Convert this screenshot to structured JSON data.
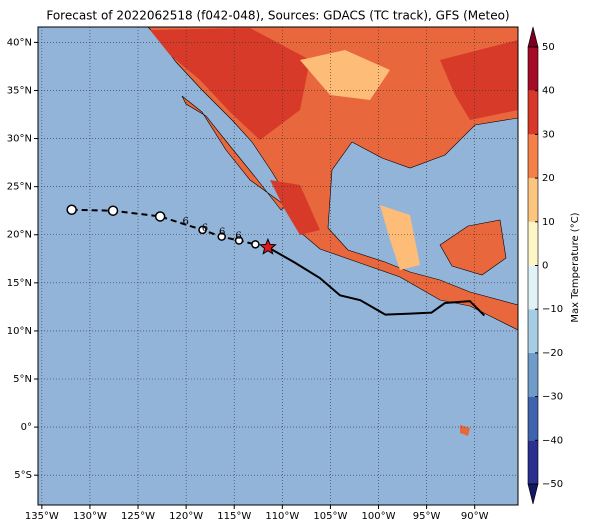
{
  "chart_data": {
    "type": "map",
    "title": "Forecast of 2022062518 (f042-048), Sources: GDACS (TC track), GFS (Meteo)",
    "xlim": [
      -135.4,
      -85.5
    ],
    "ylim": [
      -8.1,
      41.6
    ],
    "xticks": [
      {
        "value": -135,
        "label": "135°W"
      },
      {
        "value": -130,
        "label": "130°W"
      },
      {
        "value": -125,
        "label": "125°W"
      },
      {
        "value": -120,
        "label": "120°W"
      },
      {
        "value": -115,
        "label": "115°W"
      },
      {
        "value": -110,
        "label": "110°W"
      },
      {
        "value": -105,
        "label": "105°W"
      },
      {
        "value": -100,
        "label": "100°W"
      },
      {
        "value": -95,
        "label": "95°W"
      },
      {
        "value": -90,
        "label": "90°W"
      }
    ],
    "yticks": [
      {
        "value": -5,
        "label": "5°S"
      },
      {
        "value": 0,
        "label": "0°"
      },
      {
        "value": 5,
        "label": "5°N"
      },
      {
        "value": 10,
        "label": "10°N"
      },
      {
        "value": 15,
        "label": "15°N"
      },
      {
        "value": 20,
        "label": "20°N"
      },
      {
        "value": 25,
        "label": "25°N"
      },
      {
        "value": 30,
        "label": "30°N"
      },
      {
        "value": 35,
        "label": "35°N"
      },
      {
        "value": 40,
        "label": "40°N"
      }
    ],
    "grid": true,
    "forecast_track": {
      "lon": [
        -131.9,
        -127.6,
        -122.7,
        -118.3,
        -116.3,
        -114.5,
        -112.8
      ],
      "lat": [
        22.6,
        22.5,
        21.9,
        20.5,
        19.8,
        19.4,
        19.0
      ]
    },
    "current_position": {
      "lon": -111.5,
      "lat": 18.7
    },
    "past_track": {
      "lon": [
        -111.5,
        -108.7,
        -106.1,
        -104.0,
        -101.9,
        -99.3,
        -96.7,
        -94.5,
        -93.1,
        -90.5,
        -89.0
      ],
      "lat": [
        18.7,
        17.1,
        15.5,
        13.7,
        13.2,
        11.7,
        11.8,
        11.9,
        12.9,
        13.1,
        11.6
      ]
    },
    "colorbar": {
      "label": "Max Temperature (°C)",
      "lim": [
        -50,
        50
      ],
      "ticks": [
        {
          "value": -50,
          "label": "−50"
        },
        {
          "value": -40,
          "label": "−40"
        },
        {
          "value": -30,
          "label": "−30"
        },
        {
          "value": -20,
          "label": "−20"
        },
        {
          "value": -10,
          "label": "−10"
        },
        0,
        10,
        20,
        30,
        40,
        50
      ],
      "colors": [
        "#2b2f8f",
        "#3f64ad",
        "#6f9cc8",
        "#a6cde3",
        "#e1f2f7",
        "#fff6c8",
        "#fdc680",
        "#f5804a",
        "#d8382a",
        "#a30b26"
      ]
    }
  }
}
